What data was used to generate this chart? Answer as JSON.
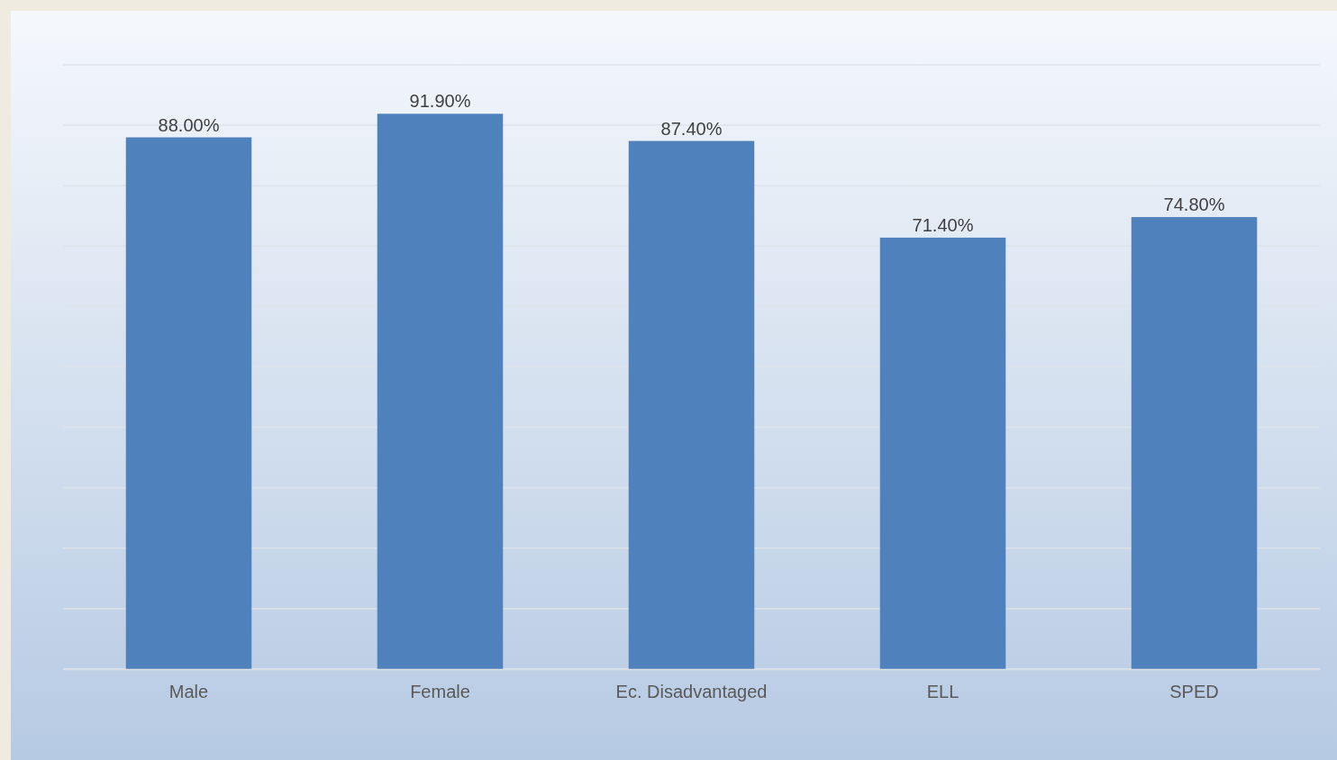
{
  "chart_data": {
    "type": "bar",
    "categories": [
      "Male",
      "Female",
      "Ec. Disadvantaged",
      "ELL",
      "SPED"
    ],
    "values": [
      88.0,
      91.9,
      87.4,
      71.4,
      74.8
    ],
    "value_labels": [
      "88.00%",
      "91.90%",
      "87.40%",
      "71.40%",
      "74.80%"
    ],
    "color": "#4f81bd",
    "ylim": [
      0,
      100
    ],
    "yticks": [
      0,
      10,
      20,
      30,
      40,
      50,
      60,
      70,
      80,
      90,
      100
    ],
    "grid": "y",
    "tick_labels": "x"
  }
}
